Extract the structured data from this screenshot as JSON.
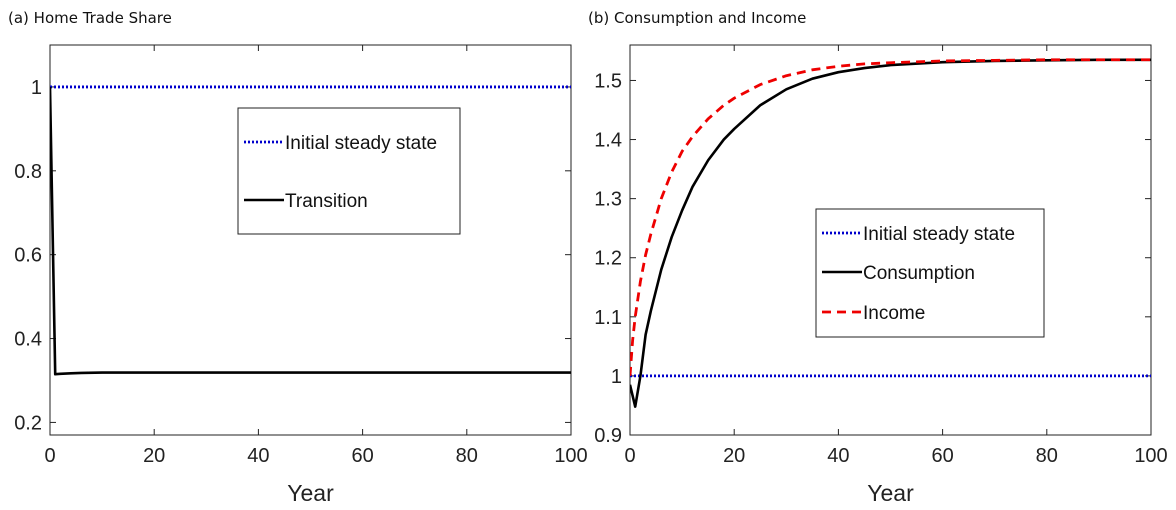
{
  "colors": {
    "initial_steady_state": "#0000cc",
    "transition": "#000000",
    "consumption": "#000000",
    "income": "#ee0000"
  },
  "chart_data": [
    {
      "type": "line",
      "title": "(a) Home Trade Share",
      "xlabel": "Year",
      "ylabel": "",
      "xlim": [
        0,
        100
      ],
      "ylim": [
        0.17,
        1.1
      ],
      "xticks": [
        "0",
        "20",
        "40",
        "60",
        "80",
        "100"
      ],
      "yticks": [
        "0.2",
        "0.4",
        "0.6",
        "0.8",
        "1"
      ],
      "legend_position": "upper-right-inset",
      "series": [
        {
          "name": "Initial steady state",
          "style": "dotted",
          "color": "#0000cc",
          "x": [
            0,
            100
          ],
          "y": [
            1,
            1
          ]
        },
        {
          "name": "Transition",
          "style": "solid",
          "color": "#000000",
          "x": [
            0,
            1,
            2,
            4,
            6,
            10,
            20,
            40,
            60,
            80,
            100
          ],
          "y": [
            1.0,
            0.315,
            0.316,
            0.317,
            0.318,
            0.319,
            0.319,
            0.319,
            0.319,
            0.319,
            0.319
          ]
        }
      ]
    },
    {
      "type": "line",
      "title": "(b) Consumption and Income",
      "xlabel": "Year",
      "ylabel": "",
      "xlim": [
        0,
        100
      ],
      "ylim": [
        0.9,
        1.56
      ],
      "xticks": [
        "0",
        "20",
        "40",
        "60",
        "80",
        "100"
      ],
      "yticks": [
        "0.9",
        "1",
        "1.1",
        "1.2",
        "1.3",
        "1.4",
        "1.5"
      ],
      "legend_position": "center-right-inset",
      "series": [
        {
          "name": "Initial steady state",
          "style": "dotted",
          "color": "#0000cc",
          "x": [
            0,
            100
          ],
          "y": [
            1,
            1
          ]
        },
        {
          "name": "Consumption",
          "style": "solid",
          "color": "#000000",
          "x": [
            0,
            1,
            2,
            3,
            4,
            6,
            8,
            10,
            12,
            15,
            18,
            20,
            25,
            30,
            35,
            40,
            45,
            50,
            60,
            70,
            80,
            90,
            100
          ],
          "y": [
            0.985,
            0.948,
            1.0,
            1.07,
            1.11,
            1.18,
            1.235,
            1.28,
            1.32,
            1.365,
            1.4,
            1.418,
            1.458,
            1.485,
            1.503,
            1.514,
            1.521,
            1.526,
            1.531,
            1.533,
            1.534,
            1.535,
            1.535
          ]
        },
        {
          "name": "Income",
          "style": "dashed",
          "color": "#ee0000",
          "x": [
            0,
            0.5,
            1,
            2,
            3,
            4,
            6,
            8,
            10,
            12,
            15,
            18,
            20,
            25,
            30,
            35,
            40,
            45,
            50,
            60,
            70,
            80,
            90,
            100
          ],
          "y": [
            1.0,
            1.06,
            1.1,
            1.16,
            1.205,
            1.24,
            1.3,
            1.345,
            1.38,
            1.405,
            1.435,
            1.458,
            1.47,
            1.493,
            1.508,
            1.518,
            1.524,
            1.528,
            1.53,
            1.533,
            1.534,
            1.535,
            1.535,
            1.535
          ]
        }
      ]
    }
  ]
}
